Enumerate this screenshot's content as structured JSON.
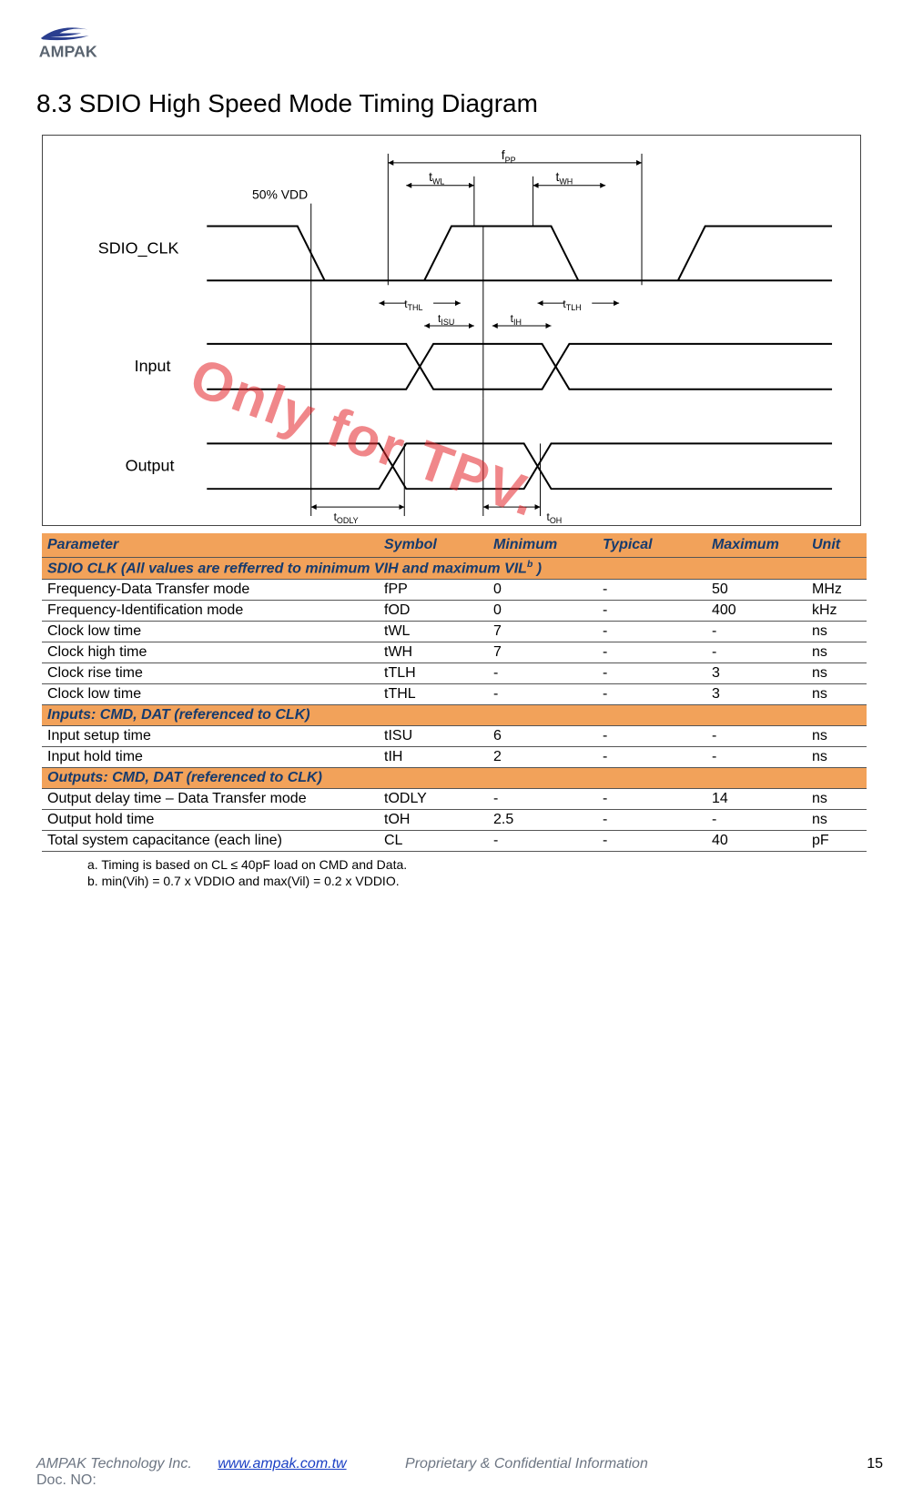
{
  "logo_text": "AMPAK",
  "section_title": "8.3 SDIO High Speed Mode Timing Diagram",
  "diagram": {
    "signals": {
      "clk": "SDIO_CLK",
      "input": "Input",
      "output": "Output"
    },
    "vdd_label": "50% VDD",
    "labels": {
      "fpp": "f",
      "fpp_sub": "PP",
      "twl": "t",
      "twl_sub": "WL",
      "twh": "t",
      "twh_sub": "WH",
      "tthl": "t",
      "tthl_sub": "THL",
      "ttlh": "t",
      "ttlh_sub": "TLH",
      "tisu": "t",
      "tisu_sub": "ISU",
      "tih": "t",
      "tih_sub": "IH",
      "todly": "t",
      "todly_sub": "ODLY",
      "toh": "t",
      "toh_sub": "OH"
    }
  },
  "watermark": "Only for TPV.",
  "table": {
    "headers": [
      "Parameter",
      "Symbol",
      "Minimum",
      "Typical",
      "Maximum",
      "Unit"
    ],
    "groups": [
      {
        "title": "SDIO CLK (All values are refferred to minimum VIH and maximum VIL",
        "title_sup": "b",
        "title_tail": " )",
        "rows": [
          [
            "Frequency-Data Transfer mode",
            "fPP",
            "0",
            "-",
            "50",
            "MHz"
          ],
          [
            "Frequency-Identification mode",
            "fOD",
            "0",
            "-",
            "400",
            "kHz"
          ],
          [
            "Clock low time",
            "tWL",
            "7",
            "-",
            "-",
            "ns"
          ],
          [
            "Clock high time",
            "tWH",
            "7",
            "-",
            "-",
            "ns"
          ],
          [
            "Clock rise time",
            "tTLH",
            "-",
            "-",
            "3",
            "ns"
          ],
          [
            "Clock low time",
            "tTHL",
            "-",
            "-",
            "3",
            "ns"
          ]
        ]
      },
      {
        "title": "Inputs: CMD, DAT (referenced to CLK)",
        "rows": [
          [
            "Input setup time",
            "tISU",
            "6",
            "-",
            "-",
            "ns"
          ],
          [
            "Input hold time",
            "tIH",
            "2",
            "-",
            "-",
            "ns"
          ]
        ]
      },
      {
        "title": "Outputs: CMD, DAT (referenced to CLK)",
        "rows": [
          [
            "Output delay time – Data Transfer mode",
            "tODLY",
            "-",
            "-",
            "14",
            "ns"
          ],
          [
            "Output hold time",
            "tOH",
            "2.5",
            "-",
            "-",
            "ns"
          ],
          [
            "Total system capacitance (each line)",
            "CL",
            "-",
            "-",
            "40",
            "pF"
          ]
        ]
      }
    ]
  },
  "notes": [
    "a. Timing is based on CL ≤ 40pF load on CMD and Data.",
    "b. min(Vih) = 0.7 x VDDIO and max(Vil) = 0.2 x VDDIO."
  ],
  "footer": {
    "company": "AMPAK Technology Inc.",
    "url": "www.ampak.com.tw",
    "conf": "Proprietary & Confidential Information",
    "page": "15",
    "docno": "Doc. NO:"
  },
  "colors": {
    "header_bg": "#f2a25a",
    "header_text": "#163b6e",
    "watermark": "#e4262b",
    "link": "#1a3fc4",
    "footer_gray": "#6d7683",
    "logo_blue": "#2a3e8f",
    "logo_gray": "#5a6470"
  }
}
